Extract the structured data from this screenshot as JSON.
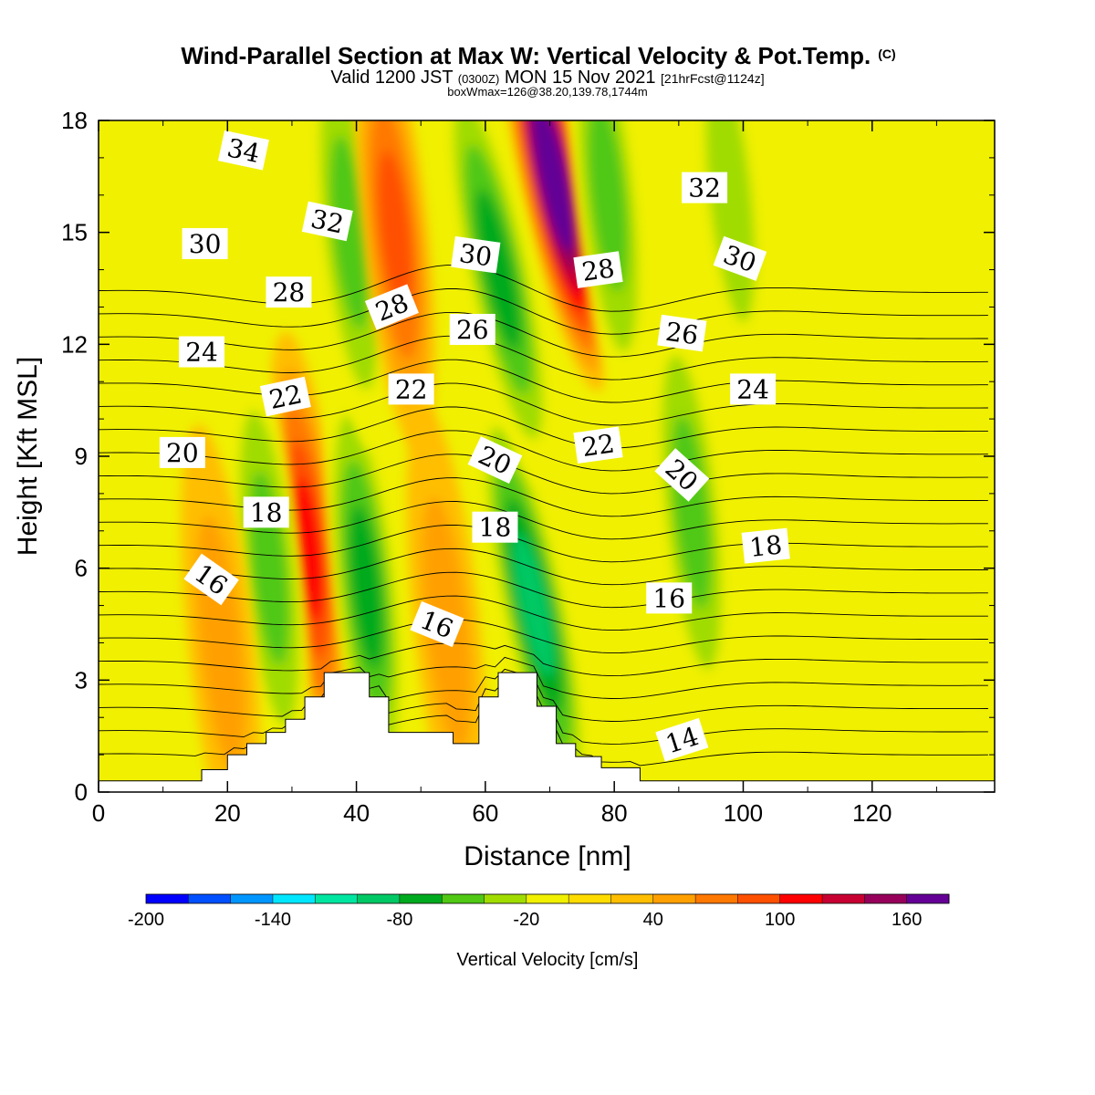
{
  "chart_data": {
    "type": "heatmap",
    "title": "Wind-Parallel Section at Max W: Vertical Velocity & Pot.Temp.",
    "title_mark": "(C)",
    "subtitle": {
      "prefix": "Valid 1200 JST",
      "utc": "(0300Z)",
      "date": "MON 15 Nov 2021",
      "fcst": "[21hrFcst@1124z]"
    },
    "box_info": "boxWmax=126@38.20,139.78,1744m",
    "xlabel": "Distance [nm]",
    "ylabel": "Height [Kft MSL]",
    "xlim": [
      0,
      139
    ],
    "ylim": [
      0,
      18
    ],
    "x_ticks": [
      "0",
      "20",
      "40",
      "60",
      "80",
      "100",
      "120"
    ],
    "y_ticks": [
      "0",
      "3",
      "6",
      "9",
      "12",
      "15",
      "18"
    ],
    "colorbar": {
      "label": "Vertical Velocity [cm/s]",
      "min": -200,
      "max": 180,
      "step": 20,
      "tick_labels": [
        "-200",
        "-140",
        "-80",
        "-20",
        "40",
        "100",
        "160"
      ],
      "colors": [
        "#0000ff",
        "#0050ff",
        "#0096ff",
        "#00e6ff",
        "#00e6a0",
        "#00c864",
        "#00aa1e",
        "#50c814",
        "#a0dc00",
        "#f0f000",
        "#ffdc00",
        "#ffbe00",
        "#ffa000",
        "#ff7800",
        "#ff5000",
        "#ff0000",
        "#c80032",
        "#96005a",
        "#640096"
      ]
    },
    "background_range": "-20 to 0 cm/s",
    "velocity_features": [
      {
        "x": 32.5,
        "z": 6.5,
        "w": 100
      },
      {
        "x": 41.5,
        "z": 5.5,
        "w": -70
      },
      {
        "x": 70.5,
        "z": 16.5,
        "w": 170
      },
      {
        "x": 67.5,
        "z": 5.0,
        "w": -90
      },
      {
        "x": 62.0,
        "z": 14.0,
        "w": -80
      },
      {
        "x": 39.0,
        "z": 15.0,
        "w": -50
      },
      {
        "x": 46.0,
        "z": 15.0,
        "w": 70
      },
      {
        "x": 92.0,
        "z": 7.5,
        "w": -50
      },
      {
        "x": 26.5,
        "z": 6.0,
        "w": -50
      },
      {
        "x": 79.0,
        "z": 16.0,
        "w": -60
      },
      {
        "x": 98.0,
        "z": 16.0,
        "w": -30
      },
      {
        "x": 19.0,
        "z": 4.0,
        "w": 40
      },
      {
        "x": 54.0,
        "z": 4.5,
        "w": 30
      }
    ],
    "terrain_profile": [
      [
        0,
        0.3
      ],
      [
        16,
        0.3
      ],
      [
        16,
        0.6
      ],
      [
        20,
        0.6
      ],
      [
        20,
        1
      ],
      [
        23,
        1
      ],
      [
        23,
        1.3
      ],
      [
        26,
        1.3
      ],
      [
        26,
        1.6
      ],
      [
        29,
        1.6
      ],
      [
        29,
        1.95
      ],
      [
        32,
        1.95
      ],
      [
        32,
        2.55
      ],
      [
        35,
        2.55
      ],
      [
        35,
        3.2
      ],
      [
        42,
        3.2
      ],
      [
        42,
        2.55
      ],
      [
        45,
        2.55
      ],
      [
        45,
        1.6
      ],
      [
        55,
        1.6
      ],
      [
        55,
        1.3
      ],
      [
        59,
        1.3
      ],
      [
        59,
        2.55
      ],
      [
        62,
        2.55
      ],
      [
        62,
        3.2
      ],
      [
        68,
        3.2
      ],
      [
        68,
        2.3
      ],
      [
        71,
        2.3
      ],
      [
        71,
        1.3
      ],
      [
        74,
        1.3
      ],
      [
        74,
        0.95
      ],
      [
        78,
        0.95
      ],
      [
        78,
        0.65
      ],
      [
        84,
        0.65
      ],
      [
        84,
        0.3
      ],
      [
        139,
        0.3
      ]
    ],
    "theta_contour_levels": [
      14,
      34
    ],
    "theta_contour_labels": [
      {
        "text": "34",
        "x": 22.5,
        "z": 17.2,
        "rot": 12
      },
      {
        "text": "32",
        "x": 35.5,
        "z": 15.3,
        "rot": 12
      },
      {
        "text": "30",
        "x": 16.5,
        "z": 14.7,
        "rot": 0
      },
      {
        "text": "28",
        "x": 29.5,
        "z": 13.4,
        "rot": 0
      },
      {
        "text": "28",
        "x": 45.5,
        "z": 13.0,
        "rot": -22
      },
      {
        "text": "30",
        "x": 58.5,
        "z": 14.4,
        "rot": 8
      },
      {
        "text": "28",
        "x": 77.5,
        "z": 14.0,
        "rot": -8
      },
      {
        "text": "32",
        "x": 94.0,
        "z": 16.2,
        "rot": 0
      },
      {
        "text": "30",
        "x": 99.5,
        "z": 14.3,
        "rot": 20
      },
      {
        "text": "24",
        "x": 16.0,
        "z": 11.8,
        "rot": 0
      },
      {
        "text": "22",
        "x": 29.0,
        "z": 10.6,
        "rot": -12
      },
      {
        "text": "22",
        "x": 48.5,
        "z": 10.8,
        "rot": 0
      },
      {
        "text": "26",
        "x": 58.0,
        "z": 12.4,
        "rot": 0
      },
      {
        "text": "26",
        "x": 90.5,
        "z": 12.3,
        "rot": 8
      },
      {
        "text": "24",
        "x": 101.5,
        "z": 10.8,
        "rot": 0
      },
      {
        "text": "20",
        "x": 13.0,
        "z": 9.1,
        "rot": 0
      },
      {
        "text": "20",
        "x": 61.5,
        "z": 8.9,
        "rot": 25
      },
      {
        "text": "22",
        "x": 77.5,
        "z": 9.3,
        "rot": -8
      },
      {
        "text": "20",
        "x": 90.5,
        "z": 8.5,
        "rot": 42
      },
      {
        "text": "18",
        "x": 26.0,
        "z": 7.5,
        "rot": 0
      },
      {
        "text": "18",
        "x": 61.5,
        "z": 7.1,
        "rot": 0
      },
      {
        "text": "18",
        "x": 103.5,
        "z": 6.6,
        "rot": -6
      },
      {
        "text": "16",
        "x": 17.5,
        "z": 5.7,
        "rot": 35
      },
      {
        "text": "16",
        "x": 52.5,
        "z": 4.5,
        "rot": 22
      },
      {
        "text": "16",
        "x": 88.5,
        "z": 5.2,
        "rot": 0
      },
      {
        "text": "14",
        "x": 90.5,
        "z": 1.4,
        "rot": -18
      }
    ],
    "grid": false,
    "legend": "colorbar-bottom"
  }
}
